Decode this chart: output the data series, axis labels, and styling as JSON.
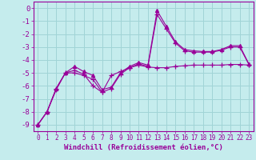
{
  "xlabel": "Windchill (Refroidissement éolien,°C)",
  "background_color": "#c5eced",
  "grid_color": "#a0d4d6",
  "line_color": "#990099",
  "xlim": [
    -0.5,
    23.5
  ],
  "ylim": [
    -9.5,
    0.5
  ],
  "yticks": [
    0,
    -1,
    -2,
    -3,
    -4,
    -5,
    -6,
    -7,
    -8,
    -9
  ],
  "xticks": [
    0,
    1,
    2,
    3,
    4,
    5,
    6,
    7,
    8,
    9,
    10,
    11,
    12,
    13,
    14,
    15,
    16,
    17,
    18,
    19,
    20,
    21,
    22,
    23
  ],
  "series": [
    {
      "x": [
        0,
        1,
        2,
        3,
        4,
        5,
        6,
        7,
        8,
        9,
        10,
        11,
        12,
        13,
        14,
        15,
        16,
        17,
        18,
        19,
        20,
        21,
        22,
        23
      ],
      "y": [
        -9.0,
        -8.0,
        -6.2,
        -5.0,
        -4.5,
        -4.9,
        -5.2,
        -6.3,
        -6.1,
        -5.0,
        -4.5,
        -4.2,
        -4.4,
        -0.2,
        -1.4,
        -2.6,
        -3.2,
        -3.3,
        -3.35,
        -3.35,
        -3.2,
        -2.9,
        -2.9,
        -4.3
      ],
      "marker": "^",
      "markersize": 3
    },
    {
      "x": [
        0,
        1,
        2,
        3,
        4,
        5,
        6,
        7,
        8,
        9,
        10,
        11,
        12,
        13,
        14,
        15,
        16,
        17,
        18,
        19,
        20,
        21,
        22,
        23
      ],
      "y": [
        -9.0,
        -8.0,
        -6.2,
        -5.0,
        -4.8,
        -5.1,
        -6.0,
        -6.5,
        -5.2,
        -4.9,
        -4.6,
        -4.3,
        -4.5,
        -0.5,
        -1.6,
        -2.7,
        -3.3,
        -3.4,
        -3.4,
        -3.4,
        -3.25,
        -3.0,
        -3.0,
        -4.35
      ],
      "marker": "+",
      "markersize": 4
    },
    {
      "x": [
        0,
        1,
        2,
        3,
        4,
        5,
        6,
        7,
        8,
        9,
        10,
        11,
        12,
        13,
        14,
        15,
        16,
        17,
        18,
        19,
        20,
        21,
        22,
        23
      ],
      "y": [
        -9.0,
        -8.0,
        -6.3,
        -5.0,
        -5.0,
        -5.2,
        -5.5,
        -6.5,
        -6.2,
        -5.1,
        -4.6,
        -4.4,
        -4.55,
        -4.6,
        -4.6,
        -4.5,
        -4.45,
        -4.4,
        -4.4,
        -4.4,
        -4.4,
        -4.35,
        -4.35,
        -4.4
      ],
      "marker": "+",
      "markersize": 4
    }
  ]
}
